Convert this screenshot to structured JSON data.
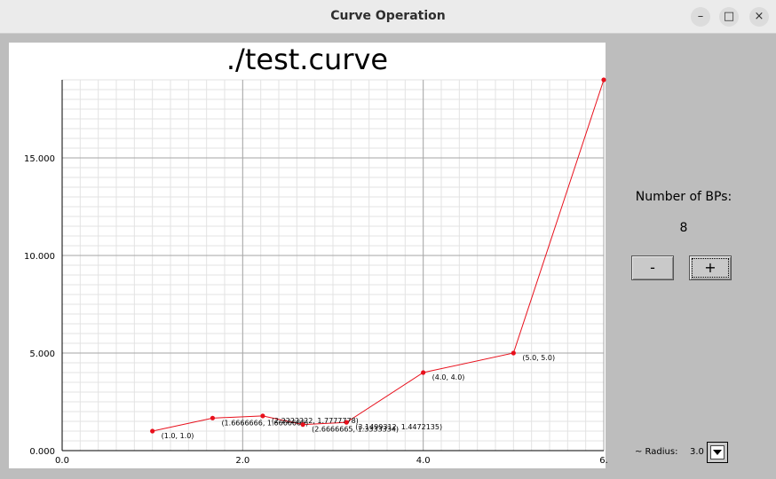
{
  "window": {
    "title": "Curve Operation",
    "minimize_glyph": "–",
    "maximize_glyph": "□",
    "close_glyph": "×"
  },
  "panel": {
    "bps_label": "Number of BPs:",
    "bps_count": "8",
    "minus_label": "-",
    "plus_label": "+",
    "radius_label": "~ Radius:",
    "radius_value": "3.0"
  },
  "chart_data": {
    "type": "line",
    "title": "./test.curve",
    "xlabel": "",
    "ylabel": "",
    "xlim": [
      0,
      6
    ],
    "ylim": [
      0,
      19
    ],
    "grid": true,
    "x_ticks": [
      0,
      2,
      4,
      6
    ],
    "x_tick_labels": [
      "0.0",
      "2.0",
      "4.0",
      "6."
    ],
    "y_ticks": [
      0,
      5,
      10,
      15
    ],
    "y_tick_labels": [
      "0.000",
      "5.000",
      "10.000",
      "15.000"
    ],
    "color": "#e8101c",
    "points": [
      {
        "x": 1.0,
        "y": 1.0,
        "label": "(1.0, 1.0)"
      },
      {
        "x": 1.6666666,
        "y": 1.6666666,
        "label": "(1.6666666, 1.6666666)"
      },
      {
        "x": 2.2222222,
        "y": 1.7777778,
        "label": "(2.2222222, 1.7777778)"
      },
      {
        "x": 2.6666665,
        "y": 1.3333334,
        "label": "(2.6666665, 1.3333334)"
      },
      {
        "x": 3.1499312,
        "y": 1.4472135,
        "label": "(3.1499312, 1.4472135)"
      },
      {
        "x": 4.0,
        "y": 4.0,
        "label": "(4.0, 4.0)"
      },
      {
        "x": 5.0,
        "y": 5.0,
        "label": "(5.0, 5.0)"
      },
      {
        "x": 6.0,
        "y": 19.0,
        "label": ""
      }
    ]
  }
}
